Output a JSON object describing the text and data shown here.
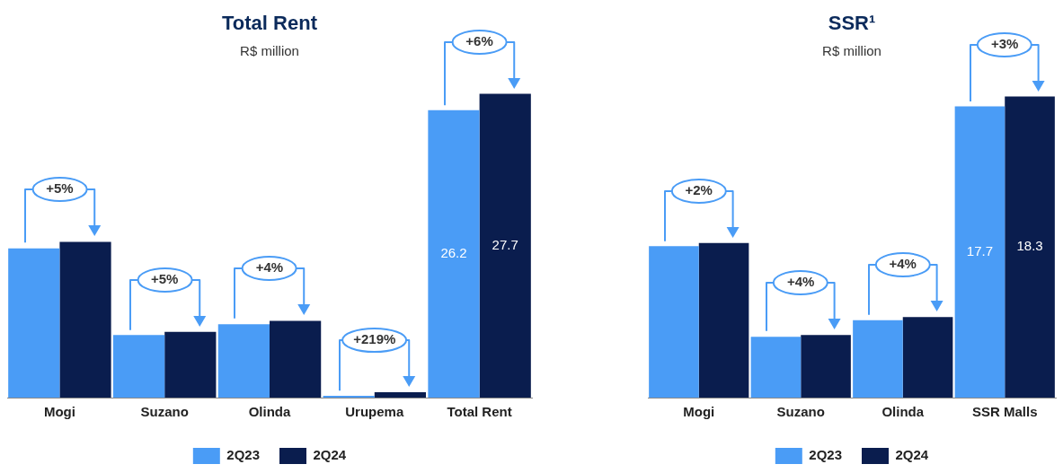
{
  "chart_data": [
    {
      "type": "bar",
      "title": "Total Rent",
      "subtitle": "R$ million",
      "categories": [
        "Mogi",
        "Suzano",
        "Olinda",
        "Urupema",
        "Total Rent"
      ],
      "series": [
        {
          "name": "2Q23",
          "color": "#4a9cf6",
          "values": [
            13.6,
            5.7,
            6.7,
            0.16,
            26.2
          ],
          "value_labels": [
            null,
            null,
            null,
            null,
            "26.2"
          ]
        },
        {
          "name": "2Q24",
          "color": "#0a1d4e",
          "values": [
            14.2,
            6.0,
            7.0,
            0.5,
            27.7
          ],
          "value_labels": [
            null,
            null,
            null,
            null,
            "27.7"
          ]
        }
      ],
      "tick_labels": "x",
      "legend": "bottom",
      "grid": false,
      "annotations": [
        "+5%",
        "+5%",
        "+4%",
        "+219%",
        "+6%"
      ]
    },
    {
      "type": "bar",
      "title": "SSR¹",
      "subtitle": "R$ million",
      "categories": [
        "Mogi",
        "Suzano",
        "Olinda",
        "SSR Malls"
      ],
      "series": [
        {
          "name": "2Q23",
          "color": "#4a9cf6",
          "values": [
            9.2,
            3.7,
            4.7,
            17.7
          ],
          "value_labels": [
            null,
            null,
            null,
            "17.7"
          ]
        },
        {
          "name": "2Q24",
          "color": "#0a1d4e",
          "values": [
            9.4,
            3.8,
            4.9,
            18.3
          ],
          "value_labels": [
            null,
            null,
            null,
            "18.3"
          ]
        }
      ],
      "tick_labels": "x",
      "legend": "bottom",
      "grid": false,
      "annotations": [
        "+2%",
        "+4%",
        "+4%",
        "+3%"
      ]
    }
  ]
}
